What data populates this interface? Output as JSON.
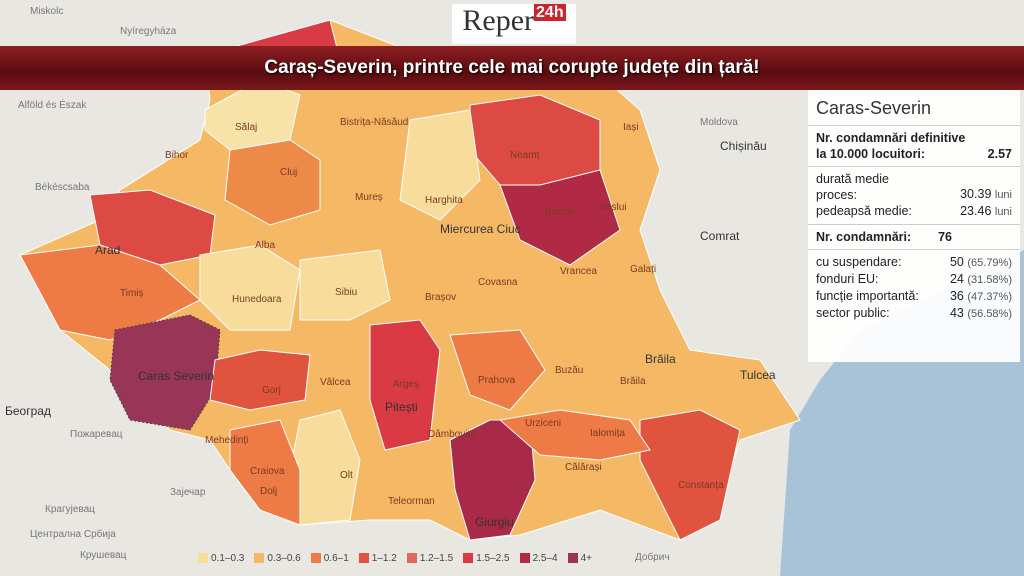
{
  "logo": {
    "name": "Reper",
    "badge": "24h"
  },
  "headline": "Caraș-Severin, printre cele mai corupte județe din țară!",
  "panel": {
    "title": "Caras-Severin",
    "rate_label": "Nr. condamnări definitive la 10.000 locuitori:",
    "rate_value": "2.57",
    "duration_label": "durată medie proces:",
    "duration_value": "30.39",
    "sentence_label": "pedeapsă medie:",
    "sentence_value": "23.46",
    "unit": "luni",
    "count_label": "Nr. condamnări:",
    "count_value": "76",
    "rows": [
      {
        "label": "cu suspendare:",
        "value": "50",
        "pct": "(65.79%)"
      },
      {
        "label": "fonduri EU:",
        "value": "24",
        "pct": "(31.58%)"
      },
      {
        "label": "funcție importantă:",
        "value": "36",
        "pct": "(47.37%)"
      },
      {
        "label": "sector public:",
        "value": "43",
        "pct": "(56.58%)"
      }
    ]
  },
  "legend": [
    {
      "label": "0.1–0.3",
      "color": "#f7dc9c"
    },
    {
      "label": "0.3–0.6",
      "color": "#f5b865"
    },
    {
      "label": "0.6–1",
      "color": "#ee7a46"
    },
    {
      "label": "1–1.2",
      "color": "#e0533f"
    },
    {
      "label": "1.2–1.5",
      "color": "#e06a5a"
    },
    {
      "label": "1.5–2.5",
      "color": "#d93a44"
    },
    {
      "label": "2.5–4",
      "color": "#b02a45"
    },
    {
      "label": "4+",
      "color": "#993557"
    }
  ],
  "background_labels": [
    "Miskolc",
    "Nyíregyháza",
    "Alföld és Észak",
    "Békéscsaba",
    "Moldova",
    "Chișinău",
    "Comrat",
    "Београд",
    "Пожаревац",
    "Крагујевац",
    "Зајечар",
    "Централна Србија",
    "Крушевац",
    "Добрич"
  ],
  "county_labels": [
    "Sălaj",
    "Bihor",
    "Cluj",
    "Bistrița-Năsăud",
    "Neamț",
    "Iași",
    "Vaslui",
    "Bacău",
    "Mureș",
    "Harghita",
    "Miercurea Ciuc",
    "Arad",
    "Alba",
    "Timiș",
    "Hunedoara",
    "Sibiu",
    "Brașov",
    "Covasna",
    "Vrancea",
    "Galați",
    "Caras Severin",
    "Gorj",
    "Vâlcea",
    "Argeș",
    "Pitești",
    "Prahova",
    "Buzău",
    "Brăila",
    "Brăila",
    "Tulcea",
    "Dâmbovița",
    "Mehedinți",
    "Craiova",
    "Dolj",
    "Olt",
    "Teleorman",
    "Giurgiu",
    "Călărași",
    "Ialomița",
    "Constanța",
    "Urziceni"
  ]
}
